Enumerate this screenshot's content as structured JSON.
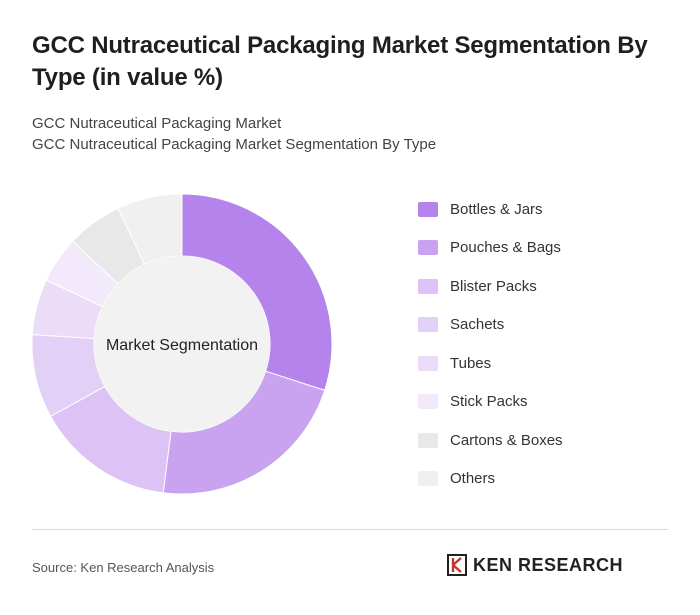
{
  "header": {
    "title": "GCC Nutraceutical Packaging Market Segmentation By Type (in value %)",
    "subtitle_line1": "GCC Nutraceutical Packaging Market",
    "subtitle_line2": "GCC Nutraceutical Packaging Market Segmentation By Type"
  },
  "chart_data": {
    "type": "pie",
    "variant": "donut",
    "center_label": "Market Segmentation",
    "categories": [
      "Bottles & Jars",
      "Pouches & Bags",
      "Blister Packs",
      "Sachets",
      "Tubes",
      "Stick Packs",
      "Cartons & Boxes",
      "Others"
    ],
    "values": [
      30,
      22,
      15,
      9,
      6,
      5,
      6,
      7
    ],
    "colors": [
      "#b483ec",
      "#c9a2f0",
      "#dcc2f5",
      "#e3d0f6",
      "#ebdcf8",
      "#f2eafb",
      "#e8e8e8",
      "#f0f0f0"
    ],
    "legend_position": "right"
  },
  "footer": {
    "source": "Source: Ken Research Analysis",
    "logo_text": "KEN RESEARCH"
  }
}
